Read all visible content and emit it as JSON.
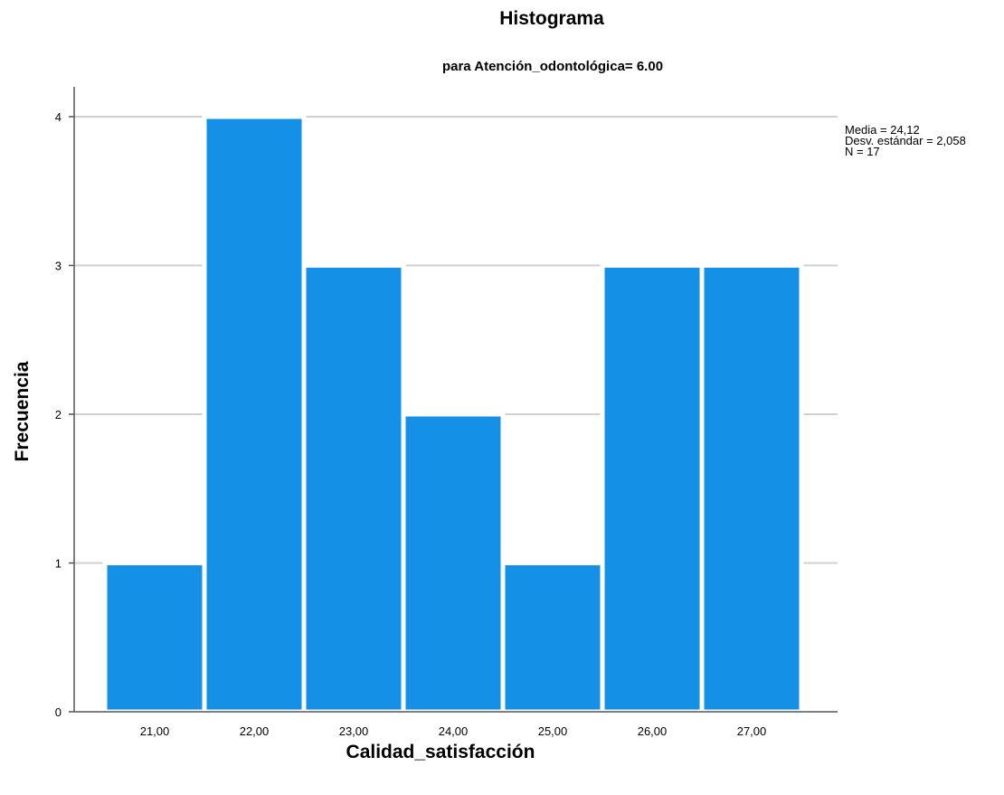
{
  "chart_data": {
    "type": "bar",
    "title": "Histograma",
    "subtitle": "para Atención_odontológica= 6.00",
    "xlabel": "Calidad_satisfacción",
    "ylabel": "Frecuencia",
    "categories": [
      "21,00",
      "22,00",
      "23,00",
      "24,00",
      "25,00",
      "26,00",
      "27,00"
    ],
    "values": [
      1,
      4,
      3,
      2,
      1,
      3,
      3
    ],
    "ylim": [
      0,
      4
    ],
    "yticks": [
      0,
      1,
      2,
      3,
      4
    ],
    "grid": true,
    "bar_color": "#1490E6",
    "stats": [
      "Media = 24,12",
      "Desv. estándar = 2,058",
      "N = 17"
    ],
    "legend_position": "right"
  }
}
